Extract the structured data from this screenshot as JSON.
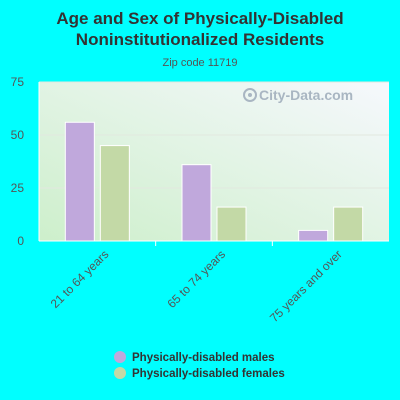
{
  "page": {
    "background": "#00FFFF",
    "watermark_icon": "city-data-logo-icon"
  },
  "chart_data": {
    "type": "bar",
    "title": "Age and Sex of Physically-Disabled Noninstitutionalized Residents",
    "title_lines": [
      "Age and Sex of Physically-Disabled",
      "Noninstitutionalized Residents"
    ],
    "subtitle": "Zip code 11719",
    "watermark": "City-Data.com",
    "categories": [
      "21 to 64 years",
      "65 to 74 years",
      "75 years and over"
    ],
    "series": [
      {
        "name": "Physically-disabled males",
        "values": [
          56,
          36,
          5
        ],
        "color": "#C0A8DC"
      },
      {
        "name": "Physically-disabled females",
        "values": [
          45,
          16,
          16
        ],
        "color": "#C3D9A6"
      }
    ],
    "yticks": [
      0,
      25,
      50,
      75
    ],
    "ylim": [
      0,
      75
    ],
    "grid": true,
    "legend_position": "bottom"
  }
}
